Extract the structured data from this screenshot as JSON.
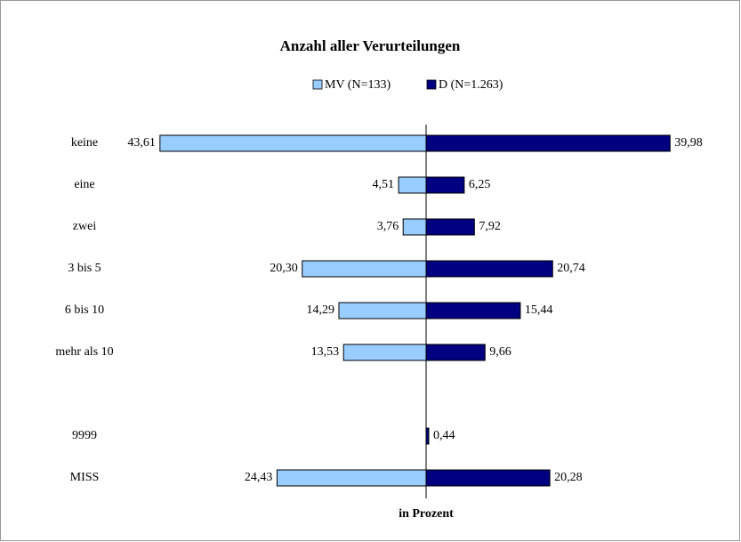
{
  "chart_data": {
    "type": "butterfly-bar",
    "title": "Anzahl aller Verurteilungen",
    "x_label": "in Prozent",
    "categories": [
      "keine",
      "eine",
      "zwei",
      "3 bis 5",
      "6 bis 10",
      "mehr als 10",
      null,
      "9999",
      "MISS"
    ],
    "series": [
      {
        "name": "MV (N=133)",
        "color": "#99ccff",
        "side": "left",
        "values": [
          43.61,
          4.51,
          3.76,
          20.3,
          14.29,
          13.53,
          null,
          null,
          24.43
        ],
        "value_labels": [
          "43,61",
          "4,51",
          "3,76",
          "20,30",
          "14,29",
          "13,53",
          null,
          null,
          "24,43"
        ]
      },
      {
        "name": "D (N=1.263)",
        "color": "#000080",
        "side": "right",
        "values": [
          39.98,
          6.25,
          7.92,
          20.74,
          15.44,
          9.66,
          null,
          0.44,
          20.28
        ],
        "value_labels": [
          "39,98",
          "6,25",
          "7,92",
          "20,74",
          "15,44",
          "9,66",
          null,
          "0,44",
          "20,28"
        ]
      }
    ]
  }
}
